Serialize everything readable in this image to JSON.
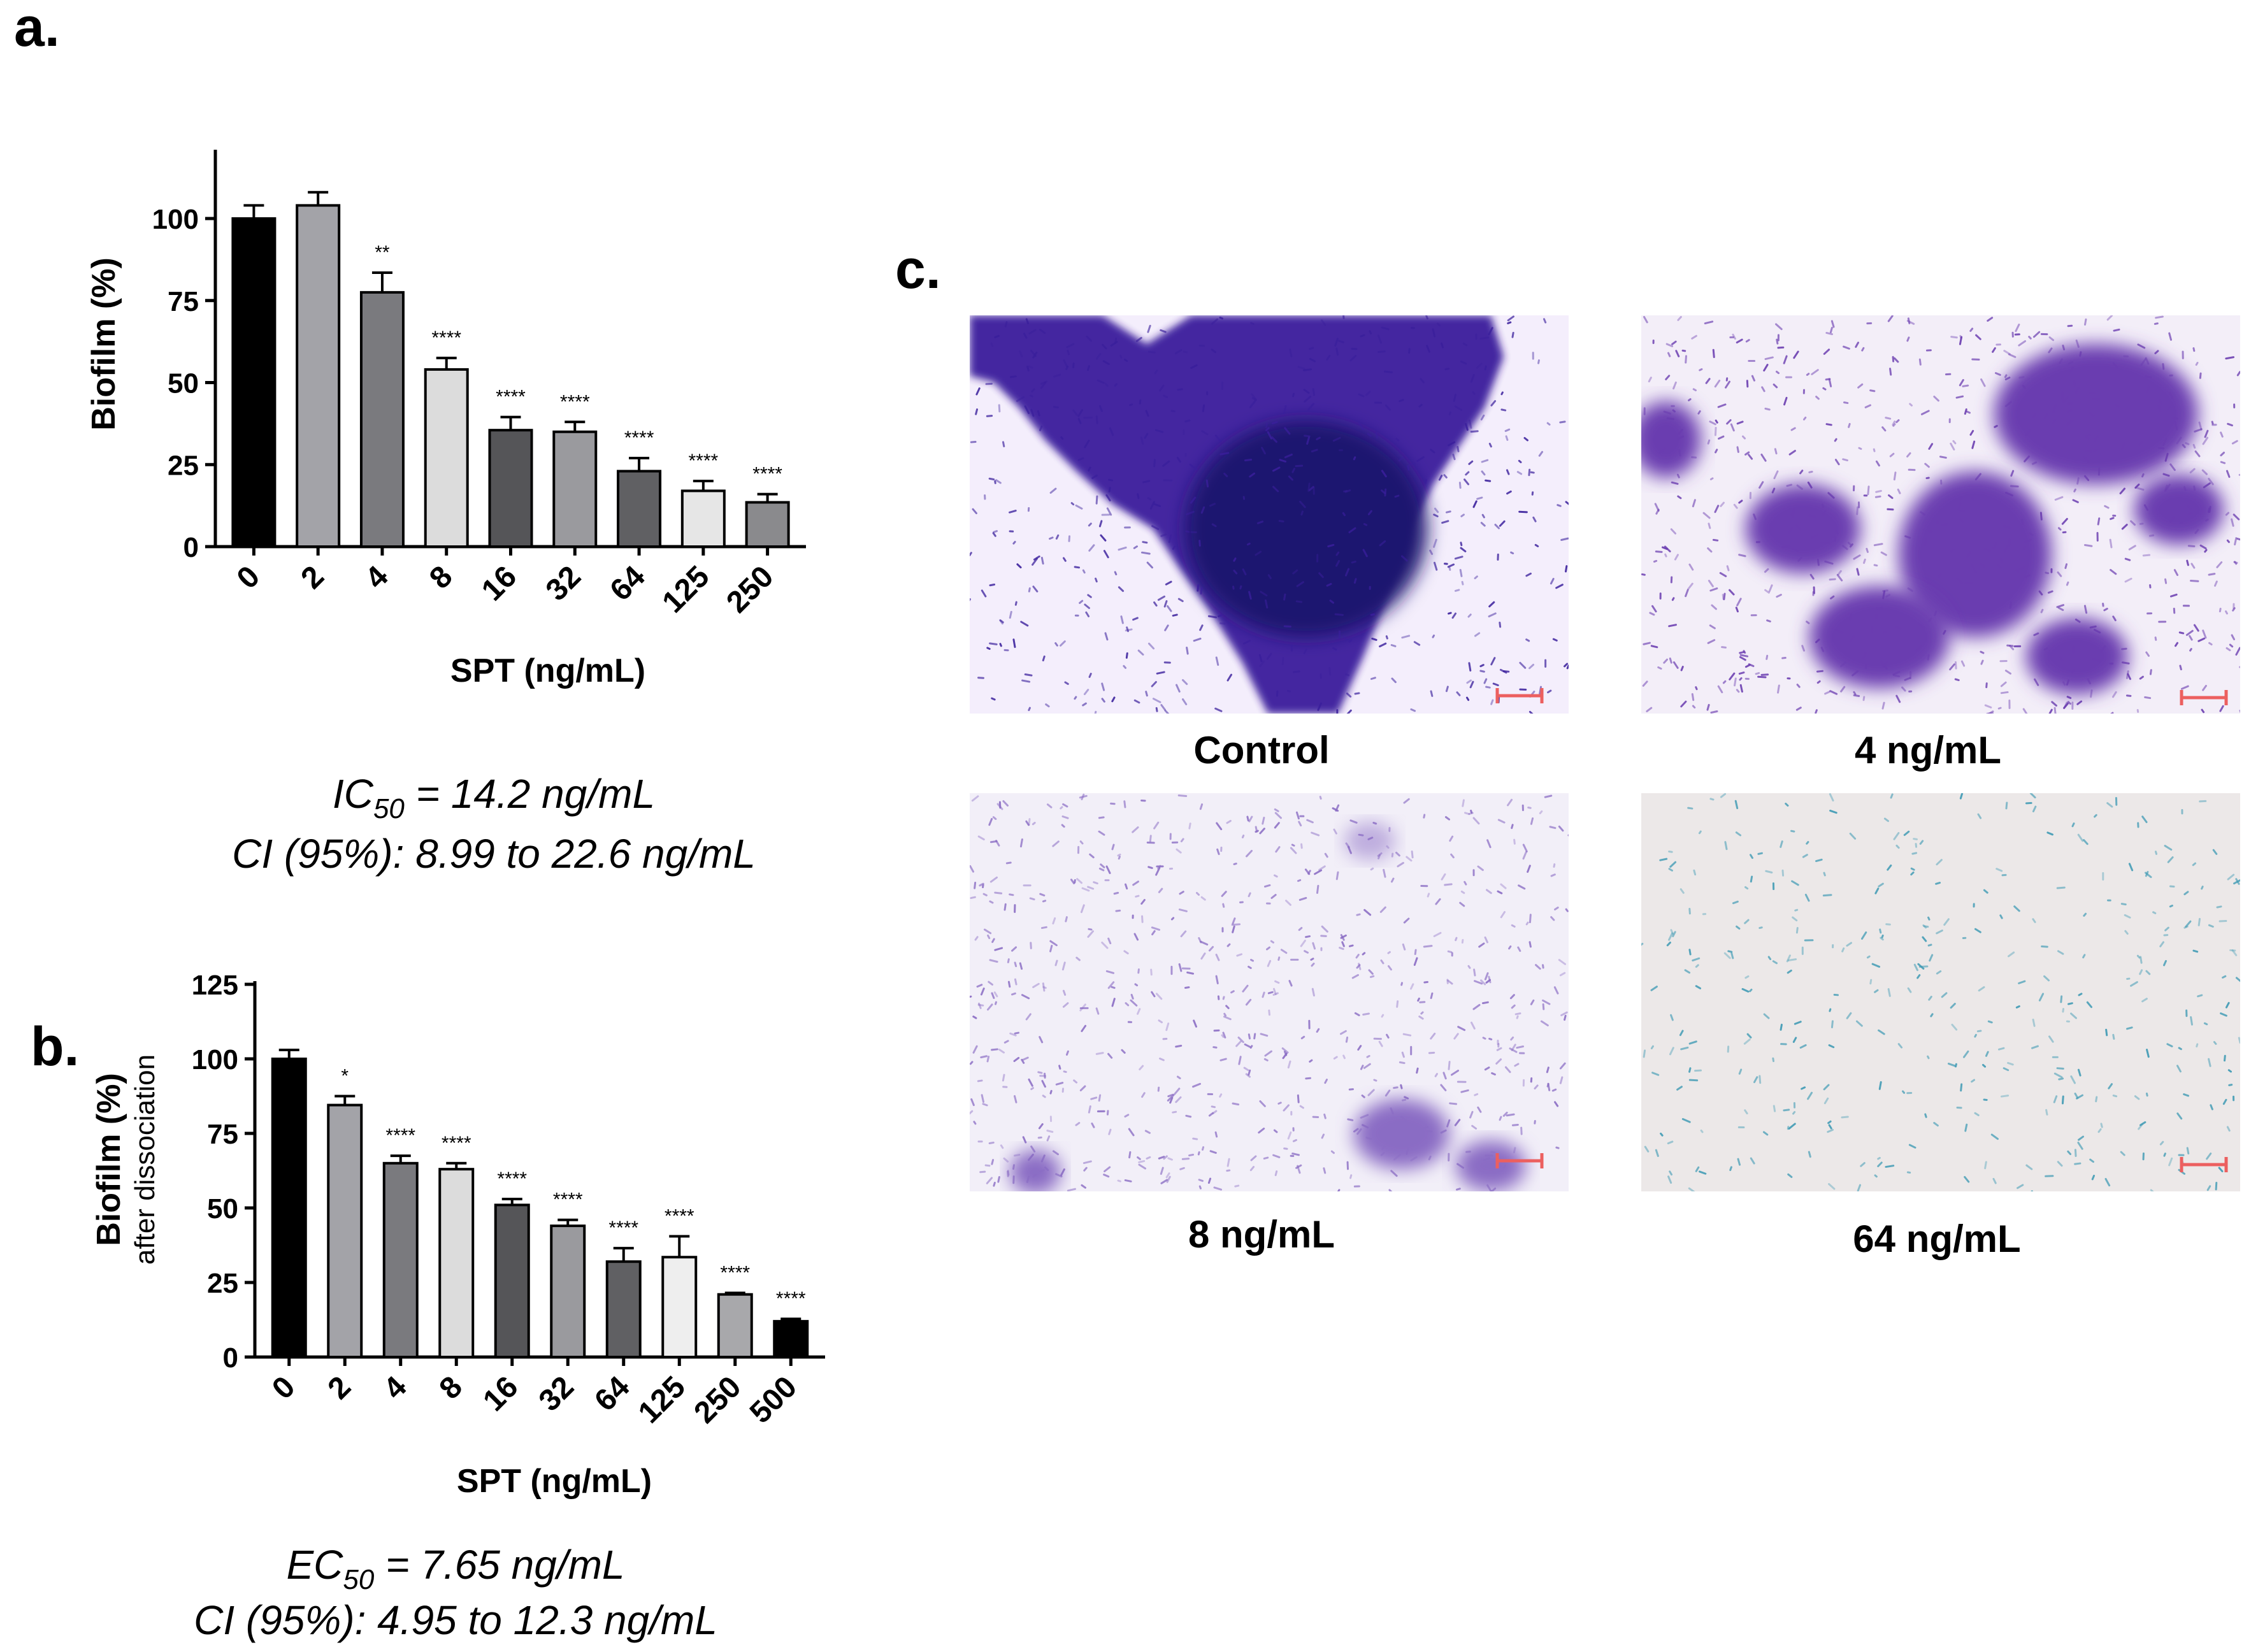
{
  "panel_labels": {
    "a": "a.",
    "b": "b.",
    "c": "c."
  },
  "chart_data": [
    {
      "type": "bar",
      "panel": "a.",
      "categories": [
        "0",
        "2",
        "4",
        "8",
        "16",
        "32",
        "64",
        "125",
        "250"
      ],
      "values": [
        100,
        104,
        77.5,
        54,
        35.5,
        35,
        23,
        17,
        13.5
      ],
      "errors": [
        4,
        4,
        6,
        3.5,
        4,
        3,
        4,
        3,
        2.5
      ],
      "significance": [
        "",
        "",
        "**",
        "****",
        "****",
        "****",
        "****",
        "****",
        "****"
      ],
      "colors": [
        "#000000",
        "#a3a3a8",
        "#7a7a7e",
        "#dcdcdc",
        "#555558",
        "#9a9a9e",
        "#606063",
        "#e6e6e6",
        "#8a8a8d"
      ],
      "ylim": [
        0,
        120
      ],
      "yticks": [
        0,
        25,
        50,
        75,
        100
      ],
      "ylabel": "Biofilm (%)",
      "xlabel": "SPT (ng/mL)",
      "stat": {
        "name": "IC",
        "sub": "50",
        "value": " = 14.2 ng/mL",
        "ci": "CI (95%): 8.99 to 22.6 ng/mL"
      }
    },
    {
      "type": "bar",
      "panel": "b.",
      "categories": [
        "0",
        "2",
        "4",
        "8",
        "16",
        "32",
        "64",
        "125",
        "250",
        "500"
      ],
      "values": [
        100,
        84.5,
        65,
        63,
        51,
        44,
        32,
        33.5,
        21,
        12
      ],
      "errors": [
        3,
        3,
        2.5,
        2,
        2,
        2,
        4.5,
        7,
        0.5,
        0.8
      ],
      "significance": [
        "",
        "*",
        "****",
        "****",
        "****",
        "****",
        "****",
        "****",
        "****",
        "****"
      ],
      "colors": [
        "#000000",
        "#a3a3a8",
        "#7a7a7e",
        "#dcdcdc",
        "#555558",
        "#9a9a9e",
        "#606063",
        "#eeeeee",
        "#a8a8ab",
        "#000000"
      ],
      "ylim": [
        0,
        125
      ],
      "yticks": [
        0,
        25,
        50,
        75,
        100,
        125
      ],
      "ylabel": "Biofilm (%)",
      "ylabel_sub": "after dissociation",
      "xlabel": "SPT (ng/mL)",
      "stat": {
        "name": "EC",
        "sub": "50",
        "value": " = 7.65 ng/mL",
        "ci": "CI (95%): 4.95 to 12.3 ng/mL"
      }
    }
  ],
  "micrographs": [
    {
      "label": "Control",
      "bg": "#f4eefc",
      "stain": "#3a1f9c",
      "density": "high"
    },
    {
      "label": "4 ng/mL",
      "bg": "#f3eef8",
      "stain": "#6a3cb0",
      "density": "medium"
    },
    {
      "label": "8 ng/mL",
      "bg": "#f2eff8",
      "stain": "#8a6cc4",
      "density": "low"
    },
    {
      "label": "64 ng/mL",
      "bg": "#ece8e8",
      "stain": "#3e9ab4",
      "density": "minimal"
    }
  ]
}
